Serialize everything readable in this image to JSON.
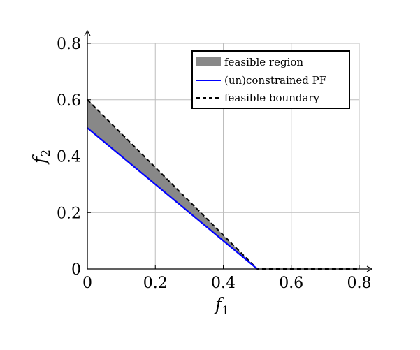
{
  "chart_data": {
    "type": "area",
    "xlabel": {
      "base": "f",
      "sub": "1"
    },
    "ylabel": {
      "base": "f",
      "sub": "2"
    },
    "xlim": [
      0,
      0.8
    ],
    "ylim": [
      0,
      0.8
    ],
    "xticks": [
      0,
      0.2,
      0.4,
      0.6,
      0.8
    ],
    "yticks": [
      0,
      0.2,
      0.4,
      0.6,
      0.8
    ],
    "xtick_labels": [
      "0",
      "0.2",
      "0.4",
      "0.6",
      "0.8"
    ],
    "ytick_labels": [
      "0",
      "0.2",
      "0.4",
      "0.6",
      "0.8"
    ],
    "grid": true,
    "legend_position": "top-right",
    "series": [
      {
        "name": "feasible region",
        "kind": "fill",
        "color": "#888888",
        "polygon": [
          [
            0,
            0.5
          ],
          [
            0,
            0.6
          ],
          [
            0.5,
            0
          ],
          [
            0.5,
            0
          ]
        ]
      },
      {
        "name": "(un)constrained PF",
        "kind": "line",
        "color": "#0000ff",
        "x": [
          0,
          0.5
        ],
        "y": [
          0.5,
          0
        ]
      },
      {
        "name": "feasible boundary",
        "kind": "dashed-line",
        "color": "#000000",
        "x": [
          0,
          0.5,
          0.8
        ],
        "y": [
          0.6,
          0,
          0
        ]
      }
    ]
  }
}
